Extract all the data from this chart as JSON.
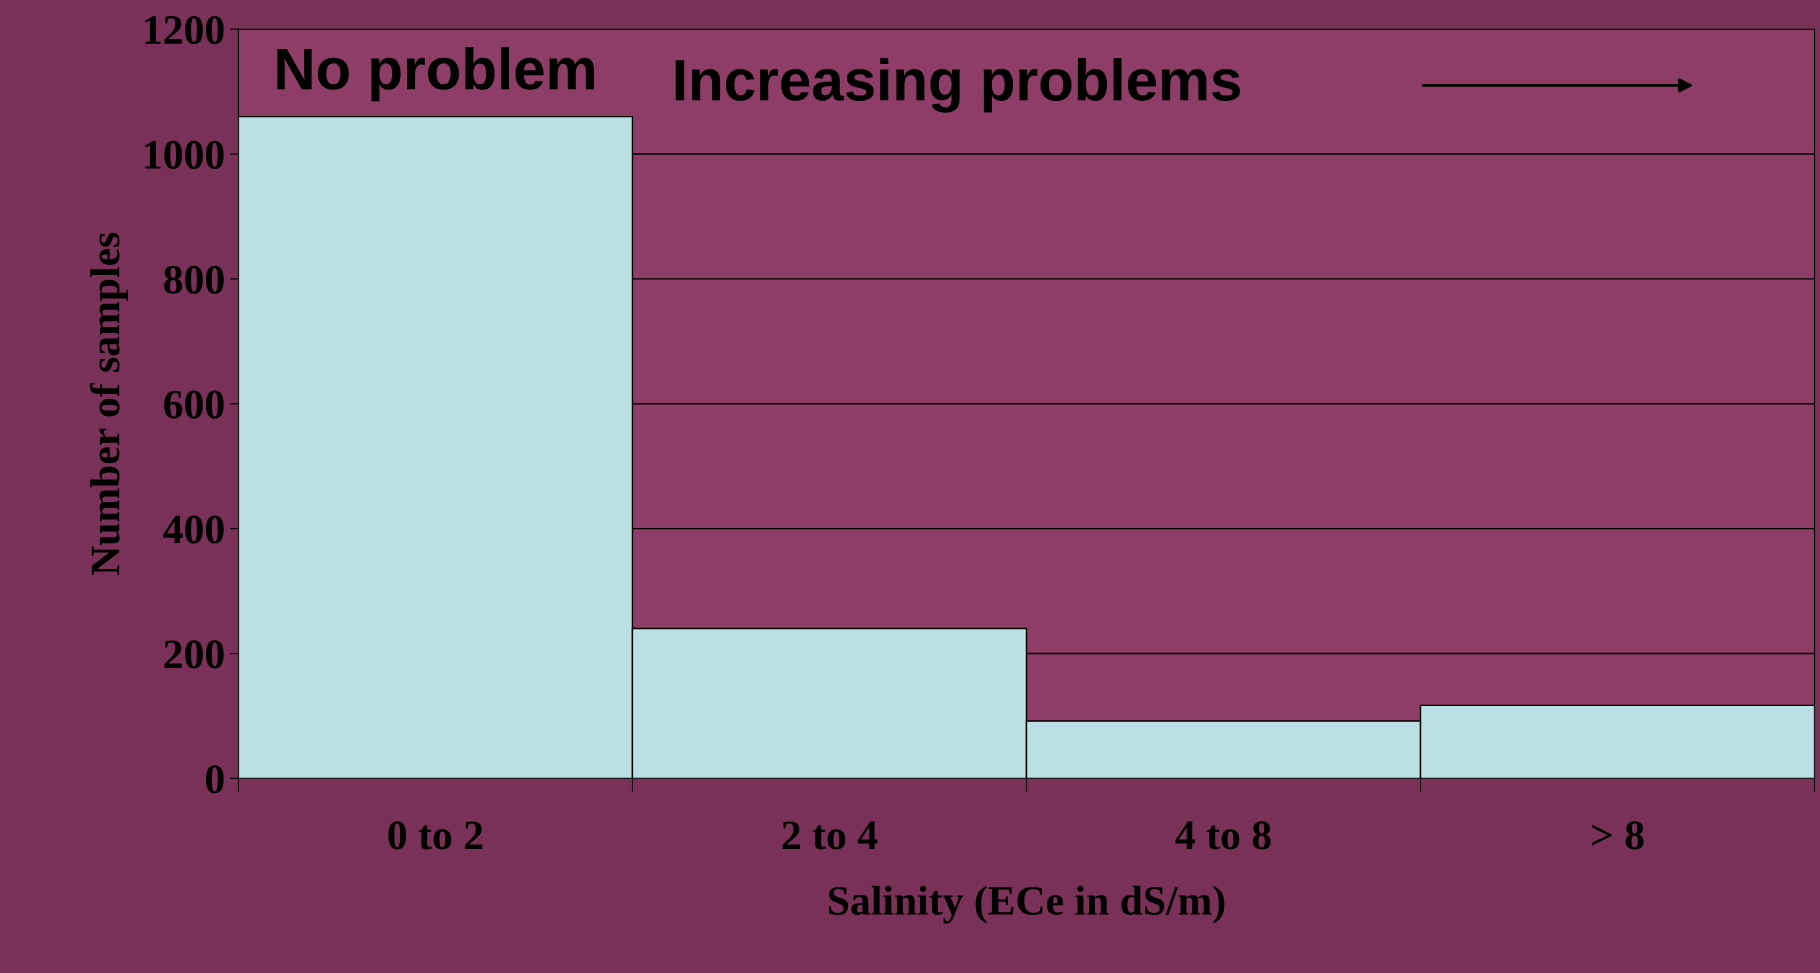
{
  "chart_data": {
    "type": "bar",
    "xlabel": "Salinity (ECe in dS/m)",
    "ylabel": "Number of samples",
    "categories": [
      "0 to 2",
      "2 to 4",
      "4 to 8",
      "> 8"
    ],
    "values": [
      1060,
      240,
      92,
      117
    ],
    "color": "#bbe0e3",
    "ylim": [
      0,
      1200
    ],
    "yticks": [
      0,
      200,
      400,
      600,
      800,
      1000,
      1200
    ],
    "grid": "y",
    "annotations": [
      "No problem",
      "Increasing problems"
    ]
  }
}
